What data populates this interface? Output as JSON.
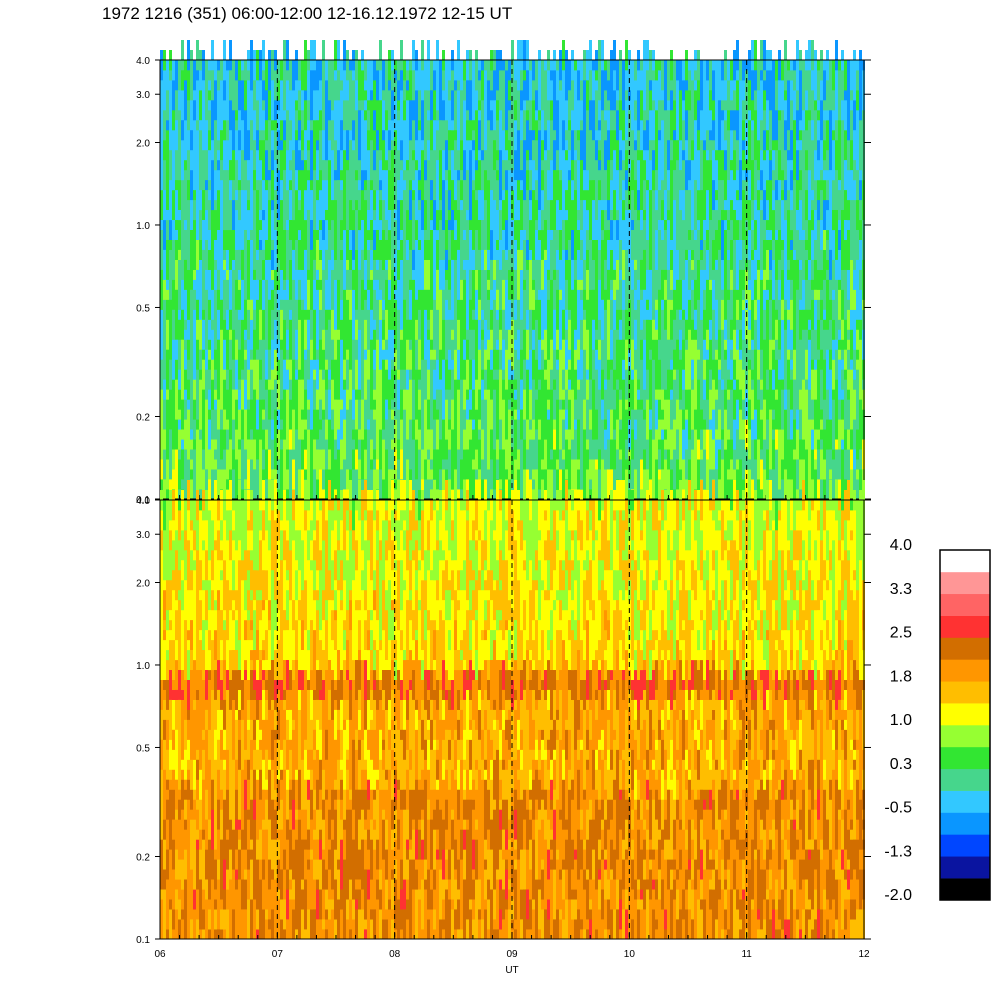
{
  "title": "1972 1216 (351) 06:00-12:00 12-16.12.1972  12-15 UT",
  "chart_data": [
    {
      "type": "heatmap",
      "panel": "upper",
      "x_range": [
        6,
        12
      ],
      "y_scale": "log",
      "ylim": [
        0.1,
        4.0
      ],
      "y_ticks": [
        "0.1",
        "0.2",
        "0.5",
        "1.0",
        "2.0",
        "3.0",
        "4.0"
      ],
      "x_ticks": [
        "06",
        "07",
        "08",
        "09",
        "10",
        "11",
        "12"
      ],
      "hour_marker_lines": [
        7,
        8,
        9,
        10,
        11
      ],
      "dominant_level_range": [
        -1.3,
        1.0
      ]
    },
    {
      "type": "heatmap",
      "panel": "lower",
      "x_range": [
        6,
        12
      ],
      "y_scale": "log",
      "ylim": [
        0.1,
        4.0
      ],
      "y_ticks": [
        "0.1",
        "0.2",
        "0.5",
        "1.0",
        "2.0",
        "3.0",
        "4.0"
      ],
      "x_ticks": [
        "06",
        "07",
        "08",
        "09",
        "10",
        "11",
        "12"
      ],
      "xlabel": "UT",
      "hour_marker_lines": [
        7,
        8,
        9,
        10,
        11
      ],
      "dominant_level_range": [
        0.3,
        2.5
      ],
      "band_near_y": 0.85
    }
  ],
  "colorbar": {
    "colors": [
      "#000000",
      "#0a14a0",
      "#0046ff",
      "#0a96ff",
      "#32c8ff",
      "#46d68c",
      "#32e632",
      "#96ff32",
      "#ffff00",
      "#ffbe00",
      "#ff9600",
      "#d26e00",
      "#ff3232",
      "#ff6464",
      "#ff9696",
      "#ffffff"
    ],
    "labels": [
      "-2.0",
      "-1.3",
      "-0.5",
      "0.3",
      "1.0",
      "1.8",
      "2.5",
      "3.3",
      "4.0"
    ]
  }
}
